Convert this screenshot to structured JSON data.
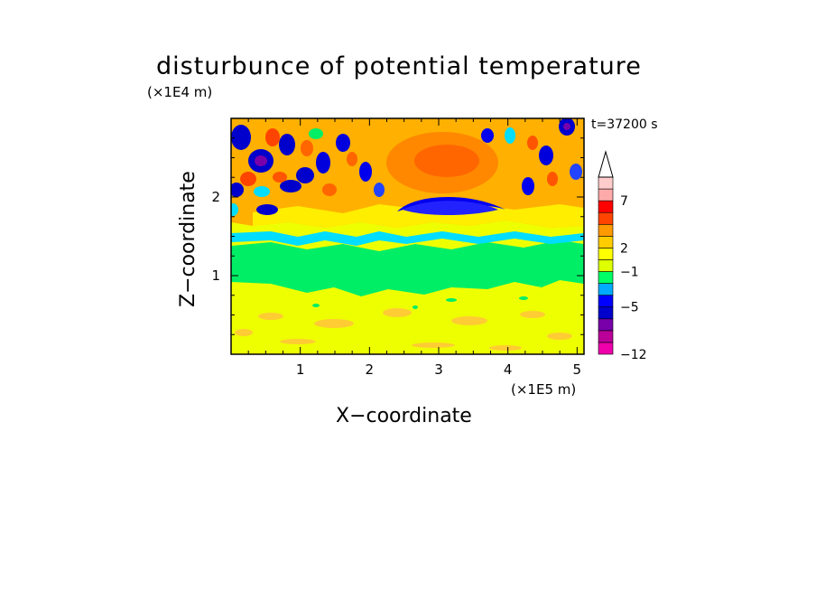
{
  "title": "disturbunce of potential temperature",
  "time_label": "t=37200 s",
  "chart_data": {
    "type": "heatmap",
    "title": "disturbunce of potential temperature",
    "xlabel": "X−coordinate",
    "ylabel": "Z−coordinate",
    "x_unit": "(×1E5 m)",
    "y_unit": "(×1E4 m)",
    "xlim": [
      0,
      5.1
    ],
    "ylim": [
      0,
      3.0
    ],
    "x_ticks": [
      1,
      2,
      3,
      4,
      5
    ],
    "x_tick_labels": [
      "1",
      "2",
      "3",
      "4",
      "5"
    ],
    "y_ticks": [
      1,
      2
    ],
    "y_tick_labels": [
      "1",
      "2"
    ],
    "colorbar": {
      "levels": [
        -12,
        -5,
        -1,
        2,
        7
      ],
      "level_labels": [
        "−12",
        "−5",
        "−1",
        "2",
        "7"
      ],
      "colors": [
        "#ee00aa",
        "#bb0099",
        "#7700aa",
        "#0000cc",
        "#0000ff",
        "#00aaff",
        "#00ff66",
        "#ddff00",
        "#ffff00",
        "#ffcc00",
        "#ff9900",
        "#ff4400",
        "#ff0000",
        "#ffaaaa",
        "#ffcccc"
      ],
      "extend": "max"
    }
  }
}
